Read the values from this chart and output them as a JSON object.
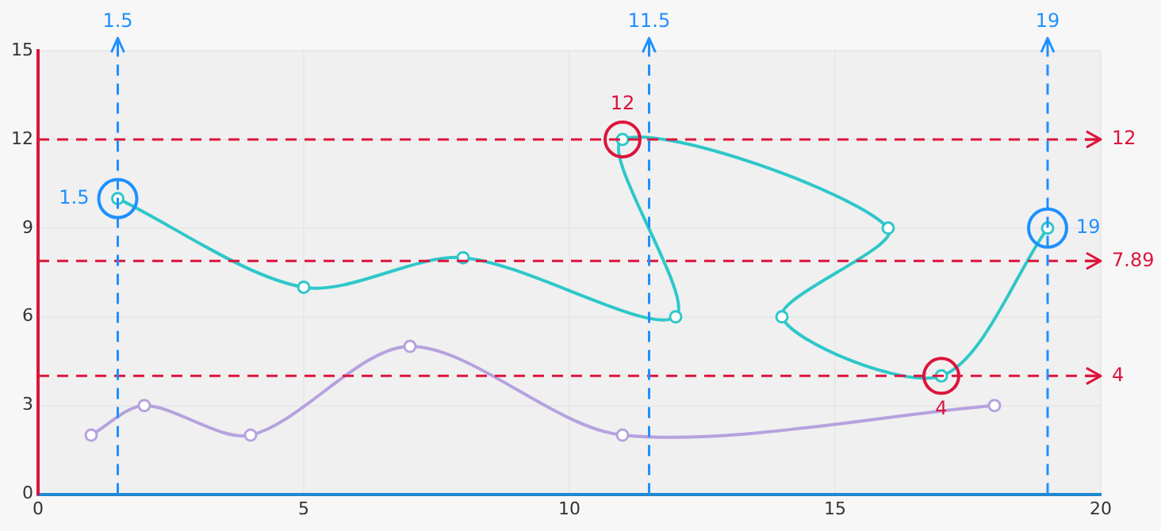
{
  "chart_data": {
    "type": "line",
    "xlim": [
      0,
      20
    ],
    "xticks": [
      0,
      5,
      10,
      15,
      20
    ],
    "ylim": [
      0,
      15
    ],
    "yticks": [
      0,
      3,
      6,
      9,
      12,
      15
    ],
    "grid": true,
    "legend": false,
    "marker": "circle",
    "line_style": "solid",
    "series": [
      {
        "color": "#2ec7c9",
        "x": [
          1.5,
          5,
          8,
          12,
          11,
          16,
          14,
          17,
          19
        ],
        "values": [
          10,
          7,
          8,
          6,
          12,
          9,
          6,
          4,
          9
        ]
      },
      {
        "color": "#b6a2de",
        "x": [
          1,
          2,
          4,
          7,
          11,
          18
        ],
        "values": [
          2,
          3,
          2,
          5,
          2,
          3
        ]
      }
    ],
    "ref_lines": [
      {
        "axis": "y",
        "value": 12,
        "label": "12",
        "color": "#dc143c",
        "line_style": "dashed"
      },
      {
        "axis": "y",
        "value": 7.89,
        "label": "7.89",
        "color": "#dc143c",
        "line_style": "dashed"
      },
      {
        "axis": "y",
        "value": 4,
        "label": "4",
        "color": "#dc143c",
        "line_style": "dashed"
      },
      {
        "axis": "x",
        "value": 1.5,
        "label": "1.5",
        "color": "#1e90ff",
        "line_style": "dashed"
      },
      {
        "axis": "x",
        "value": 11.5,
        "label": "11.5",
        "color": "#1e90ff",
        "line_style": "dashed"
      },
      {
        "axis": "x",
        "value": 19,
        "label": "19",
        "color": "#1e90ff",
        "line_style": "dashed"
      }
    ],
    "annotations": [
      {
        "text": "1.5",
        "x": 1.5,
        "y": 10
      },
      {
        "text": "12",
        "x": 11,
        "y": 12
      },
      {
        "text": "4",
        "x": 17,
        "y": 4
      },
      {
        "text": "19",
        "x": 19,
        "y": 9
      }
    ]
  }
}
